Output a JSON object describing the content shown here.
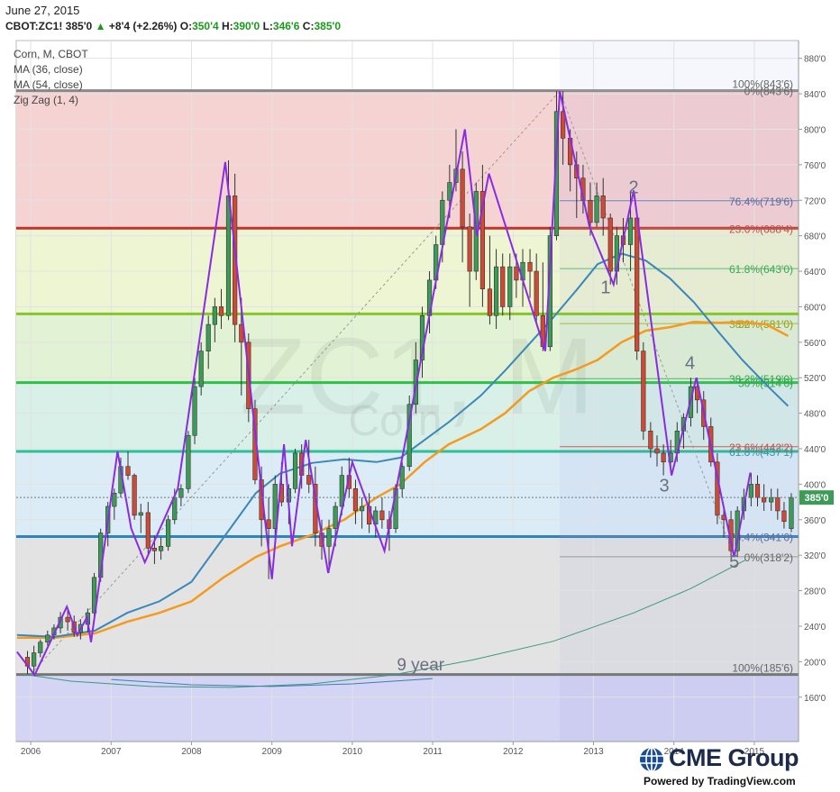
{
  "header": {
    "date": "June 27, 2015",
    "symbol": "CBOT:ZC1!",
    "last": "385'0",
    "change": "+8'4 (+2.26%)",
    "open_label": "O:",
    "open": "350'4",
    "high_label": "H:",
    "high": "390'0",
    "low_label": "L:",
    "low": "346'6",
    "close_label": "C:",
    "close": "385'0"
  },
  "legend": {
    "line1": "Corn, M, CBOT",
    "line2": "MA (36, close)",
    "line3": "MA (54, close)",
    "line4": "Zig Zag (1, 4)"
  },
  "watermark": {
    "symbol": "ZC1, M",
    "name": "Corn"
  },
  "branding": {
    "name": "CME Group",
    "powered": "Powered by TradingView.com"
  },
  "colors": {
    "up": "#3d9a57",
    "down": "#cf4a34",
    "zigzag": "#8a2be2",
    "ma36": "#3a87b9",
    "ma54": "#f59a1e",
    "grid": "#e2e2e2"
  },
  "chart_data": {
    "type": "candlestick",
    "title": "Corn, M, CBOT",
    "ylim": [
      110,
      900
    ],
    "y_ticks": [
      160,
      200,
      240,
      280,
      320,
      360,
      400,
      440,
      480,
      520,
      560,
      600,
      640,
      680,
      720,
      760,
      800,
      840,
      880
    ],
    "y_tick_labels": [
      "160'0",
      "200'0",
      "240'0",
      "280'0",
      "320'0",
      "360'0",
      "400'0",
      "440'0",
      "480'0",
      "520'0",
      "560'0",
      "600'0",
      "640'0",
      "680'0",
      "720'0",
      "760'0",
      "800'0",
      "840'0",
      "880'0"
    ],
    "x_range": [
      2005.82,
      2015.55
    ],
    "x_ticks": [
      2006,
      2007,
      2008,
      2009,
      2010,
      2011,
      2012,
      2013,
      2014,
      2015
    ],
    "x_tick_labels": [
      "2006",
      "2007",
      "2008",
      "2009",
      "2010",
      "2011",
      "2012",
      "2013",
      "2014",
      "2015"
    ],
    "last_price": 385,
    "last_price_label": "385'0",
    "fib_bands_long": {
      "levels": [
        185.5,
        341,
        437,
        514.5,
        592,
        688.5,
        843.5
      ],
      "labels": [
        {
          "y": 843.5,
          "text": "100%(843'6)"
        },
        {
          "y": 185.5,
          "text": "100%(185'6)"
        }
      ]
    },
    "fib_retracement_short": {
      "levels": [
        843.5,
        719.5,
        688.5,
        643,
        581,
        519,
        514.5,
        442.25,
        437.1,
        341,
        318.25
      ],
      "labels": [
        {
          "y": 843.5,
          "text": "0%(843'6)"
        },
        {
          "y": 719.5,
          "text": "76.4%(719'6)"
        },
        {
          "y": 688.5,
          "text": "23.6%(688'4)"
        },
        {
          "y": 643,
          "text": "61.8%(643'0)"
        },
        {
          "y": 581,
          "text": "38.2%(581'0)"
        },
        {
          "y": 581,
          "text": "50%(581'0)"
        },
        {
          "y": 519,
          "text": "38.2%(519'0)"
        },
        {
          "y": 514.5,
          "text": "50%(514'6)"
        },
        {
          "y": 442.25,
          "text": "23.6%(442'2)"
        },
        {
          "y": 437.1,
          "text": "61.8%(437'1)"
        },
        {
          "y": 341,
          "text": "76.4%(341'0)"
        },
        {
          "y": 318.25,
          "text": "0%(318'2)"
        }
      ]
    },
    "wave_labels": [
      {
        "text": "1",
        "x": 2013.15,
        "y": 615
      },
      {
        "text": "2",
        "x": 2013.5,
        "y": 728
      },
      {
        "text": "3",
        "x": 2013.88,
        "y": 392
      },
      {
        "text": "4",
        "x": 2014.2,
        "y": 530
      },
      {
        "text": "5",
        "x": 2014.75,
        "y": 306
      }
    ],
    "annotation": {
      "text": "9 year",
      "x": 2010.85,
      "y": 190
    },
    "zigzag": [
      [
        2005.83,
        211
      ],
      [
        2006.05,
        185
      ],
      [
        2006.45,
        262
      ],
      [
        2006.58,
        230
      ],
      [
        2006.7,
        250
      ],
      [
        2006.75,
        222
      ],
      [
        2007.08,
        437
      ],
      [
        2007.25,
        350
      ],
      [
        2007.42,
        312
      ],
      [
        2007.83,
        395
      ],
      [
        2008.42,
        763
      ],
      [
        2008.9,
        370
      ],
      [
        2009.0,
        293
      ],
      [
        2009.15,
        445
      ],
      [
        2009.25,
        330
      ],
      [
        2009.42,
        450
      ],
      [
        2009.7,
        300
      ],
      [
        2010.0,
        425
      ],
      [
        2010.4,
        325
      ],
      [
        2011.4,
        800
      ],
      [
        2011.55,
        680
      ],
      [
        2011.7,
        750
      ],
      [
        2012.4,
        550
      ],
      [
        2012.58,
        843
      ],
      [
        2012.95,
        690
      ],
      [
        2013.25,
        625
      ],
      [
        2013.5,
        731
      ],
      [
        2013.97,
        410
      ],
      [
        2014.28,
        520
      ],
      [
        2014.75,
        318
      ],
      [
        2014.95,
        413
      ]
    ],
    "ma36": [
      [
        2005.83,
        230
      ],
      [
        2006.3,
        228
      ],
      [
        2006.8,
        235
      ],
      [
        2007.2,
        255
      ],
      [
        2007.6,
        268
      ],
      [
        2008.0,
        290
      ],
      [
        2008.4,
        340
      ],
      [
        2008.8,
        390
      ],
      [
        2009.1,
        412
      ],
      [
        2009.5,
        424
      ],
      [
        2009.9,
        428
      ],
      [
        2010.3,
        425
      ],
      [
        2010.6,
        430
      ],
      [
        2010.9,
        450
      ],
      [
        2011.2,
        470
      ],
      [
        2011.6,
        500
      ],
      [
        2011.9,
        528
      ],
      [
        2012.2,
        558
      ],
      [
        2012.5,
        588
      ],
      [
        2012.8,
        620
      ],
      [
        2013.05,
        648
      ],
      [
        2013.35,
        660
      ],
      [
        2013.65,
        652
      ],
      [
        2013.95,
        632
      ],
      [
        2014.25,
        605
      ],
      [
        2014.55,
        572
      ],
      [
        2014.85,
        540
      ],
      [
        2015.15,
        512
      ],
      [
        2015.42,
        488
      ]
    ],
    "ma54": [
      [
        2005.83,
        227
      ],
      [
        2006.3,
        227
      ],
      [
        2006.8,
        232
      ],
      [
        2007.2,
        245
      ],
      [
        2007.6,
        255
      ],
      [
        2008.0,
        268
      ],
      [
        2008.4,
        295
      ],
      [
        2008.8,
        318
      ],
      [
        2009.1,
        330
      ],
      [
        2009.5,
        343
      ],
      [
        2009.9,
        360
      ],
      [
        2010.3,
        385
      ],
      [
        2010.6,
        400
      ],
      [
        2010.9,
        425
      ],
      [
        2011.2,
        445
      ],
      [
        2011.6,
        462
      ],
      [
        2011.9,
        480
      ],
      [
        2012.2,
        505
      ],
      [
        2012.5,
        520
      ],
      [
        2012.8,
        530
      ],
      [
        2013.05,
        540
      ],
      [
        2013.35,
        560
      ],
      [
        2013.65,
        573
      ],
      [
        2013.95,
        577
      ],
      [
        2014.25,
        583
      ],
      [
        2014.55,
        582
      ],
      [
        2014.85,
        583
      ],
      [
        2015.15,
        580
      ],
      [
        2015.42,
        567
      ]
    ],
    "arc_main": [
      [
        2005.9,
        186
      ],
      [
        2006.5,
        178
      ],
      [
        2007.5,
        172
      ],
      [
        2008.5,
        171
      ],
      [
        2009.5,
        175
      ],
      [
        2010.5,
        185
      ],
      [
        2011.5,
        202
      ],
      [
        2012.5,
        223
      ],
      [
        2013.5,
        255
      ],
      [
        2014.2,
        282
      ],
      [
        2014.9,
        315
      ]
    ],
    "arc_secondary": [
      [
        2007.0,
        180
      ],
      [
        2008.0,
        174
      ],
      [
        2009.0,
        172
      ],
      [
        2010.0,
        175
      ],
      [
        2011.0,
        181
      ]
    ],
    "trend_dotted": [
      [
        2006.0,
        186
      ],
      [
        2012.58,
        843
      ]
    ],
    "retrace_dotted": [
      [
        2012.58,
        843
      ],
      [
        2014.75,
        318
      ]
    ],
    "candles": [
      [
        2005.96,
        205,
        212,
        186,
        195
      ],
      [
        2006.04,
        195,
        218,
        185,
        210
      ],
      [
        2006.12,
        210,
        225,
        205,
        222
      ],
      [
        2006.21,
        222,
        235,
        218,
        230
      ],
      [
        2006.29,
        230,
        242,
        225,
        238
      ],
      [
        2006.37,
        238,
        256,
        232,
        250
      ],
      [
        2006.46,
        250,
        260,
        235,
        245
      ],
      [
        2006.54,
        245,
        252,
        228,
        233
      ],
      [
        2006.62,
        233,
        248,
        225,
        242
      ],
      [
        2006.71,
        242,
        260,
        233,
        255
      ],
      [
        2006.79,
        255,
        300,
        250,
        295
      ],
      [
        2006.87,
        295,
        350,
        290,
        345
      ],
      [
        2006.96,
        345,
        380,
        330,
        375
      ],
      [
        2007.04,
        375,
        395,
        360,
        390
      ],
      [
        2007.12,
        390,
        430,
        385,
        420
      ],
      [
        2007.21,
        420,
        437,
        405,
        410
      ],
      [
        2007.29,
        410,
        412,
        360,
        365
      ],
      [
        2007.37,
        365,
        378,
        345,
        368
      ],
      [
        2007.46,
        368,
        380,
        320,
        328
      ],
      [
        2007.54,
        328,
        342,
        310,
        325
      ],
      [
        2007.62,
        325,
        340,
        315,
        330
      ],
      [
        2007.71,
        330,
        365,
        325,
        360
      ],
      [
        2007.79,
        360,
        395,
        355,
        385
      ],
      [
        2007.87,
        385,
        400,
        375,
        395
      ],
      [
        2007.96,
        395,
        460,
        390,
        455
      ],
      [
        2008.04,
        455,
        520,
        445,
        510
      ],
      [
        2008.12,
        510,
        560,
        500,
        550
      ],
      [
        2008.21,
        550,
        590,
        530,
        580
      ],
      [
        2008.29,
        580,
        610,
        560,
        600
      ],
      [
        2008.37,
        600,
        620,
        575,
        590
      ],
      [
        2008.46,
        590,
        765,
        585,
        725
      ],
      [
        2008.54,
        725,
        750,
        560,
        580
      ],
      [
        2008.62,
        580,
        610,
        500,
        560
      ],
      [
        2008.71,
        560,
        570,
        470,
        485
      ],
      [
        2008.79,
        485,
        495,
        400,
        405
      ],
      [
        2008.87,
        405,
        420,
        330,
        360
      ],
      [
        2008.96,
        360,
        385,
        293,
        350
      ],
      [
        2009.04,
        350,
        410,
        340,
        400
      ],
      [
        2009.12,
        400,
        425,
        375,
        380
      ],
      [
        2009.21,
        380,
        400,
        355,
        395
      ],
      [
        2009.29,
        395,
        440,
        390,
        435
      ],
      [
        2009.37,
        435,
        445,
        395,
        410
      ],
      [
        2009.46,
        410,
        450,
        390,
        400
      ],
      [
        2009.54,
        400,
        420,
        330,
        345
      ],
      [
        2009.62,
        345,
        360,
        315,
        330
      ],
      [
        2009.71,
        330,
        360,
        300,
        350
      ],
      [
        2009.79,
        350,
        380,
        330,
        375
      ],
      [
        2009.87,
        375,
        420,
        365,
        410
      ],
      [
        2009.96,
        410,
        430,
        385,
        395
      ],
      [
        2010.04,
        395,
        405,
        355,
        370
      ],
      [
        2010.12,
        370,
        385,
        350,
        375
      ],
      [
        2010.21,
        375,
        390,
        345,
        355
      ],
      [
        2010.29,
        355,
        375,
        340,
        370
      ],
      [
        2010.37,
        370,
        385,
        350,
        360
      ],
      [
        2010.46,
        360,
        370,
        325,
        350
      ],
      [
        2010.54,
        350,
        400,
        345,
        395
      ],
      [
        2010.62,
        395,
        425,
        385,
        420
      ],
      [
        2010.71,
        420,
        500,
        415,
        490
      ],
      [
        2010.79,
        490,
        560,
        480,
        540
      ],
      [
        2010.87,
        540,
        600,
        520,
        590
      ],
      [
        2010.96,
        590,
        640,
        570,
        630
      ],
      [
        2011.04,
        630,
        680,
        620,
        670
      ],
      [
        2011.12,
        670,
        730,
        650,
        720
      ],
      [
        2011.21,
        720,
        760,
        700,
        740
      ],
      [
        2011.29,
        740,
        800,
        730,
        755
      ],
      [
        2011.37,
        755,
        775,
        650,
        690
      ],
      [
        2011.46,
        690,
        705,
        600,
        640
      ],
      [
        2011.54,
        640,
        740,
        630,
        730
      ],
      [
        2011.62,
        730,
        760,
        600,
        620
      ],
      [
        2011.71,
        620,
        680,
        580,
        590
      ],
      [
        2011.79,
        590,
        665,
        575,
        645
      ],
      [
        2011.87,
        645,
        660,
        590,
        600
      ],
      [
        2011.96,
        600,
        660,
        585,
        645
      ],
      [
        2012.04,
        645,
        660,
        610,
        630
      ],
      [
        2012.12,
        630,
        665,
        600,
        650
      ],
      [
        2012.21,
        650,
        665,
        610,
        640
      ],
      [
        2012.29,
        640,
        660,
        580,
        590
      ],
      [
        2012.37,
        590,
        650,
        550,
        555
      ],
      [
        2012.46,
        555,
        690,
        550,
        680
      ],
      [
        2012.54,
        680,
        843,
        675,
        820
      ],
      [
        2012.62,
        820,
        843,
        760,
        790
      ],
      [
        2012.71,
        790,
        800,
        730,
        760
      ],
      [
        2012.79,
        760,
        775,
        700,
        745
      ],
      [
        2012.87,
        745,
        760,
        705,
        720
      ],
      [
        2012.96,
        720,
        740,
        680,
        695
      ],
      [
        2013.04,
        695,
        740,
        690,
        725
      ],
      [
        2013.12,
        725,
        745,
        680,
        700
      ],
      [
        2013.21,
        700,
        705,
        625,
        640
      ],
      [
        2013.29,
        640,
        690,
        625,
        680
      ],
      [
        2013.37,
        680,
        700,
        650,
        670
      ],
      [
        2013.46,
        670,
        731,
        640,
        700
      ],
      [
        2013.54,
        700,
        705,
        540,
        550
      ],
      [
        2013.62,
        550,
        560,
        450,
        460
      ],
      [
        2013.71,
        460,
        470,
        430,
        440
      ],
      [
        2013.79,
        440,
        455,
        420,
        435
      ],
      [
        2013.87,
        435,
        445,
        410,
        425
      ],
      [
        2013.96,
        425,
        450,
        420,
        435
      ],
      [
        2014.04,
        435,
        470,
        425,
        460
      ],
      [
        2014.12,
        460,
        480,
        440,
        475
      ],
      [
        2014.21,
        475,
        520,
        465,
        510
      ],
      [
        2014.29,
        510,
        520,
        480,
        495
      ],
      [
        2014.37,
        495,
        505,
        450,
        465
      ],
      [
        2014.46,
        465,
        475,
        420,
        425
      ],
      [
        2014.54,
        425,
        435,
        355,
        365
      ],
      [
        2014.62,
        365,
        375,
        340,
        360
      ],
      [
        2014.71,
        360,
        370,
        318,
        325
      ],
      [
        2014.79,
        325,
        375,
        318,
        370
      ],
      [
        2014.87,
        370,
        395,
        360,
        385
      ],
      [
        2014.96,
        385,
        413,
        375,
        400
      ],
      [
        2015.04,
        400,
        410,
        375,
        385
      ],
      [
        2015.12,
        385,
        400,
        370,
        380
      ],
      [
        2015.21,
        380,
        395,
        370,
        385
      ],
      [
        2015.29,
        385,
        395,
        360,
        370
      ],
      [
        2015.37,
        370,
        380,
        350,
        358
      ],
      [
        2015.46,
        350,
        390,
        346,
        385
      ]
    ]
  }
}
